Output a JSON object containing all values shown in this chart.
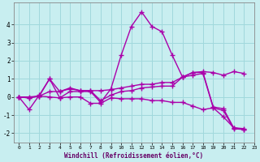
{
  "xlabel": "Windchill (Refroidissement éolien,°C)",
  "background_color": "#c8eef0",
  "grid_color": "#a0d8dc",
  "line_color": "#aa00aa",
  "xlim": [
    -0.5,
    23
  ],
  "ylim": [
    -2.5,
    5.2
  ],
  "yticks": [
    -2,
    -1,
    0,
    1,
    2,
    3,
    4
  ],
  "xticks": [
    0,
    1,
    2,
    3,
    4,
    5,
    6,
    7,
    8,
    9,
    10,
    11,
    12,
    13,
    14,
    15,
    16,
    17,
    18,
    19,
    20,
    21,
    22,
    23
  ],
  "series": [
    [
      0.0,
      -0.7,
      0.1,
      1.0,
      -0.05,
      0.3,
      0.3,
      0.3,
      -0.3,
      0.45,
      2.3,
      3.9,
      4.7,
      3.9,
      3.6,
      2.3,
      1.1,
      1.2,
      1.3,
      -0.6,
      -1.1,
      -1.7,
      -1.75
    ],
    [
      0.0,
      -0.05,
      0.05,
      1.0,
      0.3,
      0.5,
      0.35,
      0.35,
      0.35,
      0.4,
      0.5,
      0.6,
      0.7,
      0.7,
      0.8,
      0.8,
      1.1,
      1.35,
      1.4,
      1.35,
      1.2,
      1.4,
      1.3
    ],
    [
      0.0,
      -0.05,
      0.05,
      0.0,
      -0.05,
      0.0,
      0.0,
      -0.35,
      -0.35,
      -0.05,
      -0.1,
      -0.1,
      -0.1,
      -0.2,
      -0.2,
      -0.3,
      -0.3,
      -0.5,
      -0.7,
      -0.6,
      -0.75,
      -1.75,
      -1.8
    ],
    [
      0.0,
      0.0,
      0.05,
      0.3,
      0.3,
      0.45,
      0.35,
      0.35,
      -0.2,
      0.1,
      0.3,
      0.35,
      0.5,
      0.55,
      0.6,
      0.6,
      1.1,
      1.35,
      1.35,
      -0.55,
      -0.65,
      -1.7,
      -1.8
    ]
  ],
  "marker": "+",
  "markersize": 4,
  "linewidth": 1.0
}
